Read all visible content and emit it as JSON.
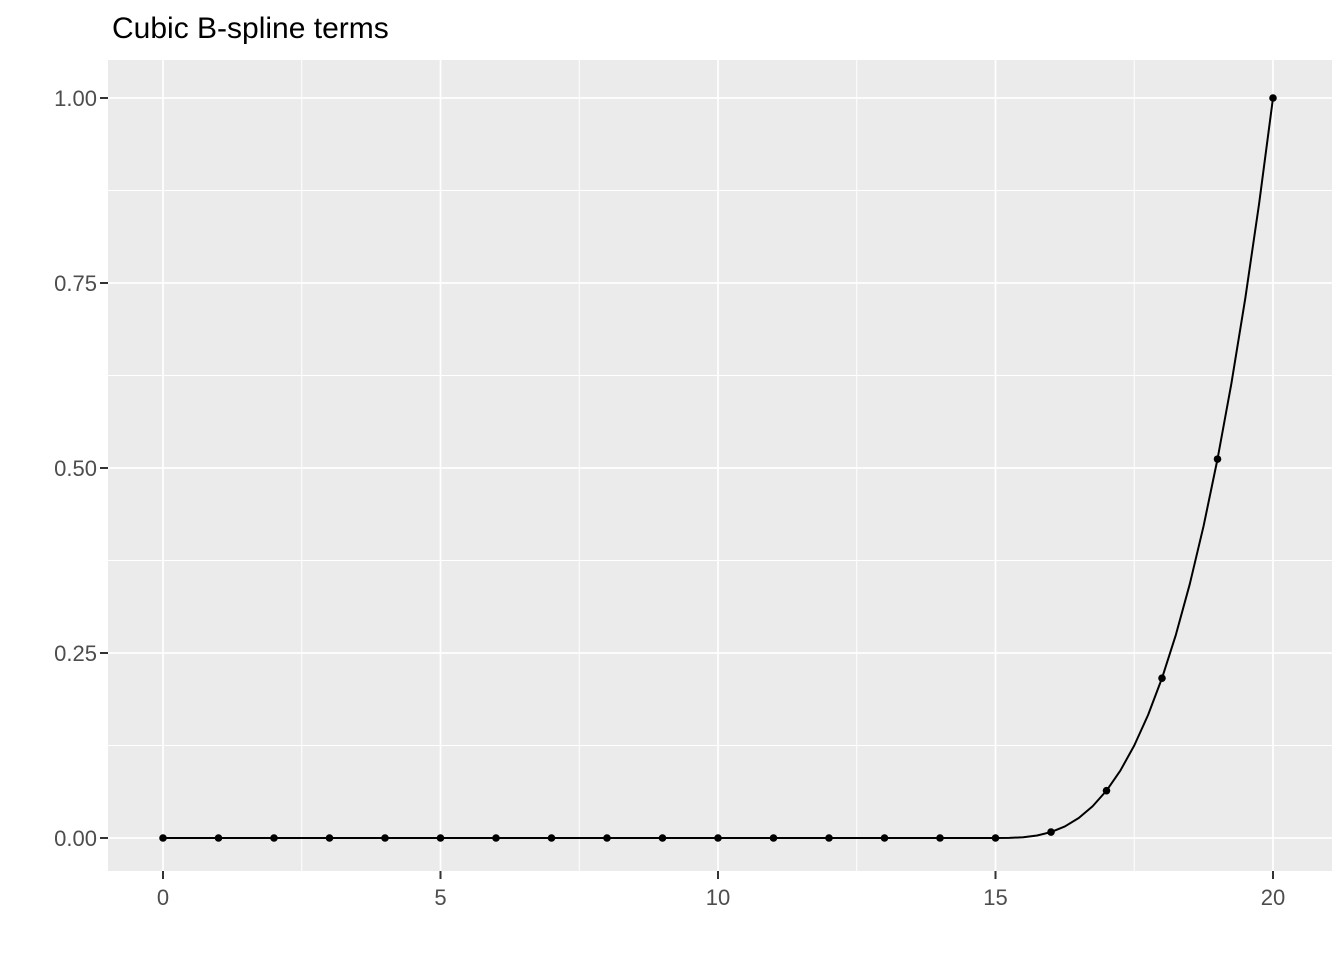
{
  "chart_data": {
    "type": "line",
    "title": "Cubic B-spline terms",
    "xlabel": "",
    "ylabel": "",
    "xlim": [
      0,
      20
    ],
    "ylim": [
      0,
      1
    ],
    "grid": "on",
    "legend": "none",
    "x": [
      0,
      1,
      2,
      3,
      4,
      5,
      6,
      7,
      8,
      9,
      10,
      11,
      12,
      13,
      14,
      15,
      16,
      17,
      18,
      19,
      20
    ],
    "y": [
      0,
      0,
      0,
      0,
      0,
      0,
      0,
      0,
      0,
      0,
      0,
      0,
      0,
      0,
      0,
      0,
      0.008,
      0.064,
      0.216,
      0.512,
      1.0
    ],
    "curve_x": [
      0,
      15,
      15.25,
      15.5,
      15.75,
      16,
      16.25,
      16.5,
      16.75,
      17,
      17.25,
      17.5,
      17.75,
      18,
      18.25,
      18.5,
      18.75,
      19,
      19.25,
      19.5,
      19.75,
      20
    ],
    "curve_y": [
      0,
      0,
      0.000125,
      0.001,
      0.003375,
      0.008,
      0.015625,
      0.027,
      0.042875,
      0.064,
      0.091125,
      0.125,
      0.166375,
      0.216,
      0.274625,
      0.343,
      0.421875,
      0.512,
      0.614125,
      0.729,
      0.857375,
      1.0
    ],
    "x_ticks": {
      "values": [
        0,
        5,
        10,
        15,
        20
      ],
      "labels": [
        "0",
        "5",
        "10",
        "15",
        "20"
      ]
    },
    "y_ticks": {
      "values": [
        0,
        0.25,
        0.5,
        0.75,
        1
      ],
      "labels": [
        "0.00",
        "0.25",
        "0.50",
        "0.75",
        "1.00"
      ]
    },
    "x_minor": [
      2.5,
      7.5,
      12.5,
      17.5
    ],
    "y_minor": [
      0.125,
      0.375,
      0.625,
      0.875
    ]
  },
  "style": {
    "page_bg": "#FFFFFF",
    "panel_bg": "#EBEBEB",
    "grid_color": "#FFFFFF",
    "line_color": "#000000",
    "point_color": "#000000",
    "axis_text_color": "#4D4D4D",
    "tick_mark_color": "#333333",
    "title_color": "#000000"
  }
}
